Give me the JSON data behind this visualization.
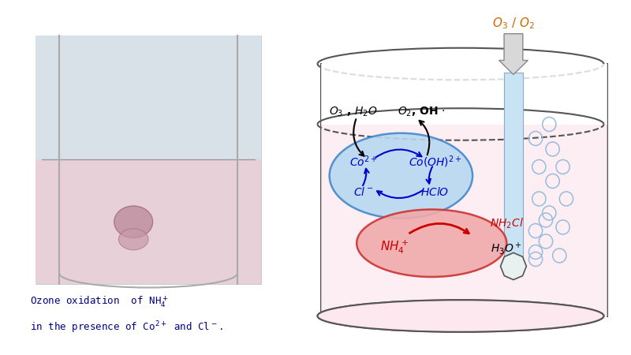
{
  "bg_color": "#ffffff",
  "container_fill": "#fce8ee",
  "container_edge": "#555555",
  "blue_ellipse_fill": "#b8d8f0",
  "blue_ellipse_edge": "#4488cc",
  "red_ellipse_fill": "#f0aaaa",
  "red_ellipse_edge": "#cc3333",
  "tube_fill": "#c8e4f4",
  "tube_edge": "#88aacc",
  "arrow_gray_fill": "#d8d8d8",
  "arrow_gray_edge": "#888888",
  "dark_blue": "#0000cc",
  "dark_red": "#cc0000",
  "black": "#000000",
  "navy": "#000080",
  "caption_color": "#000080",
  "bubble_edge": "#99bbdd",
  "o3o2_color": "#cc6600"
}
